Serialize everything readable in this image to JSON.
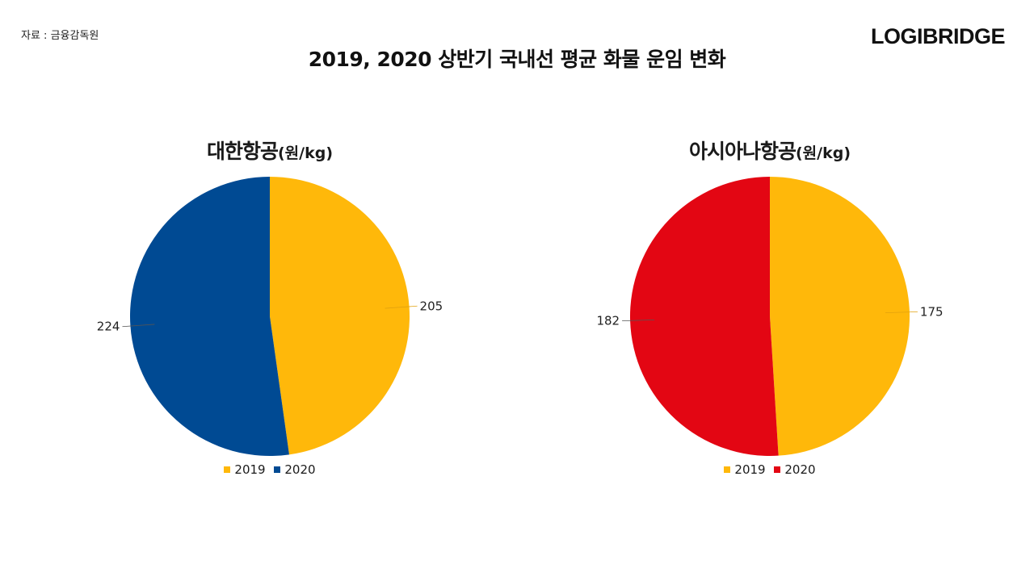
{
  "source": "자료 : 금융감독원",
  "brand": "LOGIBRIDGE",
  "title": "2019, 2020 상반기 국내선 평균 화물 운임 변화",
  "chart_data": [
    {
      "type": "pie",
      "title": "대한항공",
      "unit": "(원/kg)",
      "categories": [
        "2019",
        "2020"
      ],
      "values": [
        205,
        224
      ],
      "colors": [
        "#FFB80A",
        "#004A93"
      ],
      "legend": "bottom"
    },
    {
      "type": "pie",
      "title": "아시아나항공",
      "unit": "(원/kg)",
      "categories": [
        "2019",
        "2020"
      ],
      "values": [
        175,
        182
      ],
      "colors": [
        "#FFB80A",
        "#E30613"
      ],
      "legend": "bottom"
    }
  ]
}
